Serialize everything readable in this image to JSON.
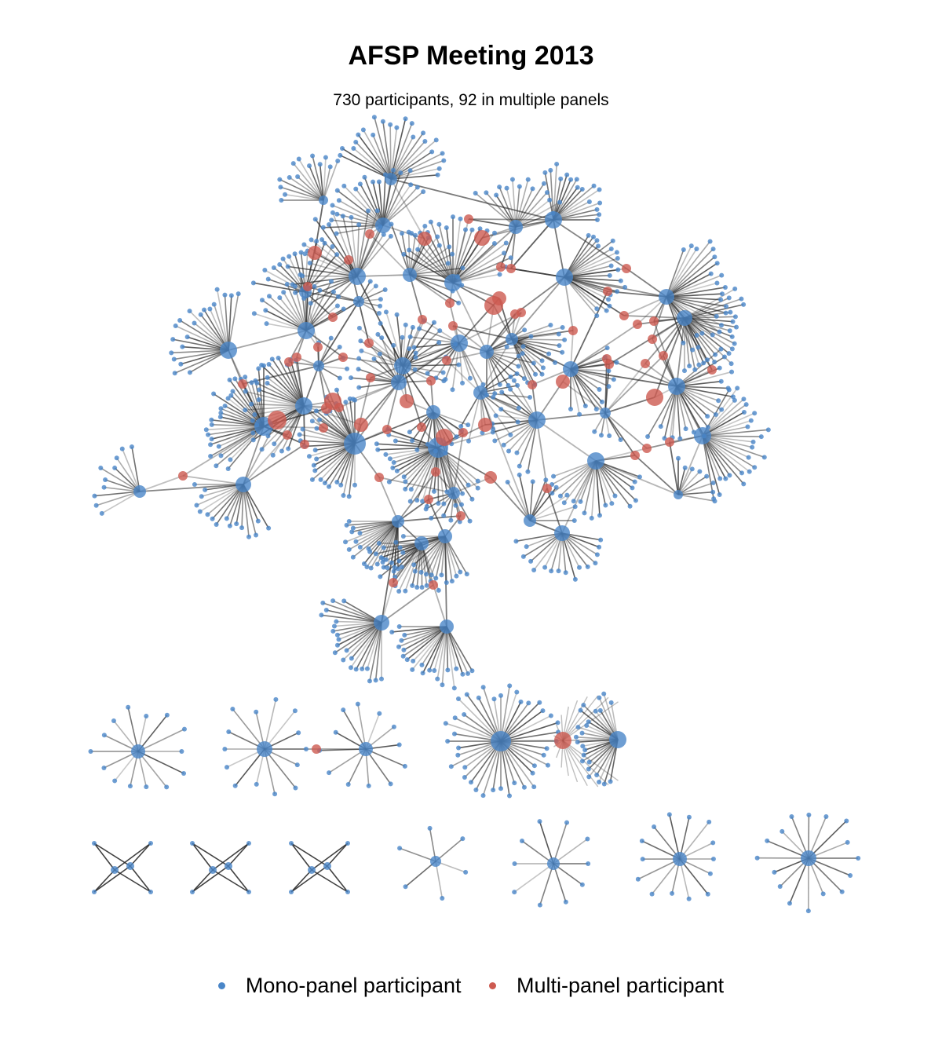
{
  "title": "AFSP Meeting 2013",
  "subtitle": "730 participants, 92 in multiple panels",
  "legend": {
    "mono": {
      "label": "Mono-panel participant",
      "color": "#4a86c8"
    },
    "multi": {
      "label": "Multi-panel participant",
      "color": "#cd5a50"
    }
  },
  "colors": {
    "edge": "#2b2b2b"
  }
}
